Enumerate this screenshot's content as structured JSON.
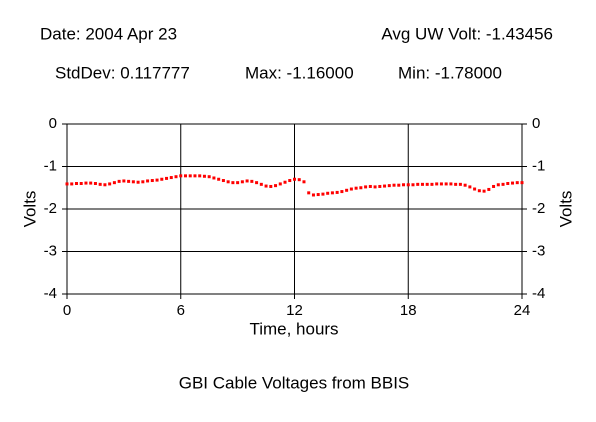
{
  "chart_data": {
    "type": "scatter",
    "title": "GBI Cable Voltages from BBIS",
    "header": [
      "Date: 2004 Apr 23",
      "Avg UW Volt: -1.43456",
      "StdDev: 0.117777",
      "Max: -1.16000",
      "Min: -1.78000"
    ],
    "xlabel": "Time, hours",
    "ylabel": "Volts",
    "y2label": "Volts",
    "xlim": [
      0,
      24
    ],
    "xticks": [
      0,
      6,
      12,
      18,
      24
    ],
    "ylim": [
      -4,
      0
    ],
    "yticks": [
      0,
      -1,
      -2,
      -3,
      -4
    ],
    "y2lim": [
      -4,
      0
    ],
    "y2ticks": [
      0,
      -1,
      -2,
      -3,
      -4
    ],
    "grid": true,
    "color": "#ff0000",
    "x": [
      0,
      0.25,
      0.5,
      0.75,
      1,
      1.25,
      1.5,
      1.75,
      2,
      2.25,
      2.5,
      2.75,
      3,
      3.25,
      3.5,
      3.75,
      4,
      4.25,
      4.5,
      4.75,
      5,
      5.25,
      5.5,
      5.75,
      6,
      6.25,
      6.5,
      6.75,
      7,
      7.25,
      7.5,
      7.75,
      8,
      8.25,
      8.5,
      8.75,
      9,
      9.25,
      9.5,
      9.75,
      10,
      10.25,
      10.5,
      10.75,
      11,
      11.25,
      11.5,
      11.75,
      12,
      12.25,
      12.5,
      12.75,
      13,
      13.25,
      13.5,
      13.75,
      14,
      14.25,
      14.5,
      14.75,
      15,
      15.25,
      15.5,
      15.75,
      16,
      16.25,
      16.5,
      16.75,
      17,
      17.25,
      17.5,
      17.75,
      18,
      18.25,
      18.5,
      18.75,
      19,
      19.25,
      19.5,
      19.75,
      20,
      20.25,
      20.5,
      20.75,
      21,
      21.25,
      21.5,
      21.75,
      22,
      22.25,
      22.5,
      22.75,
      23,
      23.25,
      23.5,
      23.75,
      24
    ],
    "values": [
      -1.41,
      -1.41,
      -1.4,
      -1.4,
      -1.39,
      -1.39,
      -1.4,
      -1.42,
      -1.43,
      -1.41,
      -1.38,
      -1.35,
      -1.34,
      -1.35,
      -1.36,
      -1.37,
      -1.36,
      -1.34,
      -1.33,
      -1.32,
      -1.3,
      -1.28,
      -1.26,
      -1.24,
      -1.22,
      -1.22,
      -1.22,
      -1.22,
      -1.22,
      -1.23,
      -1.24,
      -1.27,
      -1.3,
      -1.33,
      -1.36,
      -1.38,
      -1.38,
      -1.36,
      -1.34,
      -1.35,
      -1.38,
      -1.42,
      -1.46,
      -1.47,
      -1.45,
      -1.41,
      -1.37,
      -1.33,
      -1.3,
      -1.31,
      -1.36,
      -1.62,
      -1.67,
      -1.66,
      -1.65,
      -1.63,
      -1.62,
      -1.61,
      -1.59,
      -1.56,
      -1.53,
      -1.51,
      -1.5,
      -1.48,
      -1.47,
      -1.48,
      -1.47,
      -1.46,
      -1.45,
      -1.44,
      -1.44,
      -1.43,
      -1.43,
      -1.43,
      -1.42,
      -1.42,
      -1.42,
      -1.42,
      -1.41,
      -1.41,
      -1.41,
      -1.41,
      -1.42,
      -1.42,
      -1.44,
      -1.48,
      -1.53,
      -1.57,
      -1.58,
      -1.54,
      -1.47,
      -1.43,
      -1.42,
      -1.4,
      -1.39,
      -1.38,
      -1.38
    ]
  }
}
